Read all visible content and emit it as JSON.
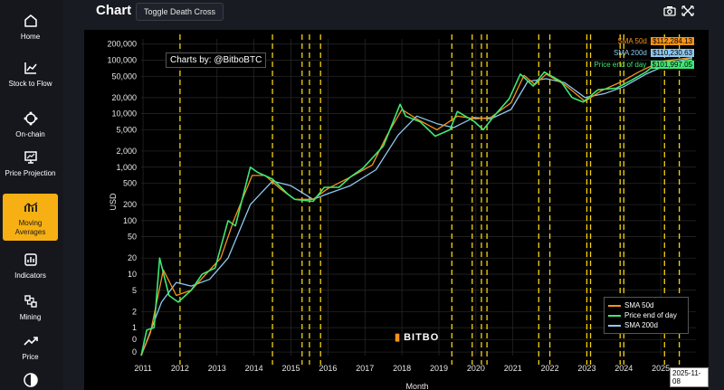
{
  "sidebar": {
    "items": [
      {
        "label": "Home",
        "icon": "home-icon"
      },
      {
        "label": "Stock to Flow",
        "icon": "stock-to-flow-icon"
      },
      {
        "label": "On-chain",
        "icon": "on-chain-icon"
      },
      {
        "label": "Price Projection",
        "icon": "price-projection-icon"
      },
      {
        "label": "Moving Averages",
        "icon": "moving-averages-icon",
        "active": true
      },
      {
        "label": "Indicators",
        "icon": "indicators-icon"
      },
      {
        "label": "Mining",
        "icon": "mining-icon"
      },
      {
        "label": "Price",
        "icon": "price-icon"
      },
      {
        "label": "",
        "icon": "theme-toggle-icon"
      }
    ]
  },
  "header": {
    "title": "Chart",
    "toggle_label": "Toggle Death Cross",
    "icons": [
      "camera-icon",
      "fullscreen-icon"
    ]
  },
  "chart": {
    "credit": "Charts by: @BitboBTC",
    "logo_text": "BITBO",
    "date_label": "2025-11-08",
    "annotations": [
      {
        "name": "SMA 50d",
        "value": "$112,284.13",
        "color": "#f7931a"
      },
      {
        "name": "SMA 200d",
        "value": "$110,230.63",
        "color": "#8ec9f0"
      },
      {
        "name": "Price end of day",
        "value": "$101,997.05",
        "color": "#3ee873"
      }
    ]
  },
  "chart_data": {
    "type": "line",
    "xlabel": "Month",
    "ylabel": "USD",
    "yscale": "log",
    "x_ticks": [
      "2011",
      "2012",
      "2013",
      "2014",
      "2015",
      "2016",
      "2017",
      "2018",
      "2019",
      "2020",
      "2021",
      "2022",
      "2023",
      "2024",
      "2025"
    ],
    "y_ticks": [
      "0",
      "0",
      "1",
      "2",
      "5",
      "10",
      "20",
      "50",
      "100",
      "200",
      "500",
      "1,000",
      "2,000",
      "5,000",
      "10,000",
      "20,000",
      "50,000",
      "100,000",
      "200,000"
    ],
    "legend": [
      "SMA 50d",
      "Price end of day",
      "SMA 200d"
    ],
    "legend_position": "bottom-right",
    "grid": true,
    "colors": {
      "sma50": "#f7931a",
      "price": "#3ee873",
      "sma200": "#8ec9f0",
      "cross": "#f5d20b"
    },
    "series": [
      {
        "name": "Price end of day",
        "x": [
          2010.95,
          2011.1,
          2011.3,
          2011.45,
          2011.7,
          2011.95,
          2012.3,
          2012.6,
          2012.95,
          2013.3,
          2013.5,
          2013.9,
          2014.1,
          2014.5,
          2014.9,
          2015.1,
          2015.6,
          2015.9,
          2016.3,
          2016.6,
          2016.95,
          2017.5,
          2017.95,
          2018.1,
          2018.5,
          2018.9,
          2019.3,
          2019.5,
          2019.95,
          2020.2,
          2020.5,
          2020.9,
          2021.2,
          2021.55,
          2021.85,
          2022.3,
          2022.6,
          2022.9,
          2023.3,
          2023.8,
          2024.2,
          2024.6,
          2024.95,
          2025.3,
          2025.85
        ],
        "values": [
          0.3,
          0.9,
          1.0,
          20,
          4,
          3,
          5,
          10,
          13,
          100,
          80,
          1000,
          800,
          600,
          320,
          250,
          230,
          420,
          420,
          650,
          960,
          2500,
          15000,
          9000,
          7000,
          3800,
          5000,
          11000,
          7200,
          5000,
          9200,
          19000,
          55000,
          33000,
          60000,
          40000,
          20000,
          16500,
          28000,
          30000,
          42000,
          60000,
          95000,
          85000,
          101997
        ]
      },
      {
        "name": "SMA 50d",
        "x": [
          2010.95,
          2011.2,
          2011.55,
          2011.9,
          2012.3,
          2012.7,
          2013.1,
          2013.45,
          2013.95,
          2014.3,
          2014.7,
          2015.1,
          2015.6,
          2016.0,
          2016.6,
          2017.2,
          2017.6,
          2018.0,
          2018.4,
          2018.95,
          2019.5,
          2020.0,
          2020.4,
          2020.95,
          2021.3,
          2021.6,
          2021.9,
          2022.4,
          2022.95,
          2023.4,
          2023.95,
          2024.4,
          2025.0,
          2025.85
        ],
        "values": [
          0.3,
          0.8,
          12,
          4,
          5,
          10,
          20,
          100,
          700,
          700,
          400,
          250,
          250,
          400,
          650,
          1100,
          4000,
          12000,
          8000,
          5000,
          9000,
          8000,
          8500,
          16000,
          52000,
          35000,
          55000,
          35000,
          17000,
          27000,
          40000,
          60000,
          95000,
          112284
        ]
      },
      {
        "name": "SMA 200d",
        "x": [
          2010.95,
          2011.5,
          2011.9,
          2012.3,
          2012.8,
          2013.3,
          2013.9,
          2014.5,
          2015.0,
          2015.6,
          2016.0,
          2016.6,
          2017.3,
          2017.9,
          2018.4,
          2018.95,
          2019.4,
          2019.95,
          2020.4,
          2020.95,
          2021.4,
          2021.9,
          2022.4,
          2022.95,
          2023.5,
          2024.0,
          2024.6,
          2025.3,
          2025.85
        ],
        "values": [
          0.3,
          3,
          7,
          6,
          8,
          20,
          200,
          550,
          450,
          250,
          320,
          450,
          900,
          4000,
          9000,
          6500,
          5500,
          8500,
          8000,
          12000,
          40000,
          45000,
          38000,
          20000,
          24000,
          32000,
          55000,
          90000,
          110231
        ]
      }
    ],
    "cross_events": [
      2012.0,
      2014.5,
      2015.3,
      2015.5,
      2015.8,
      2019.35,
      2019.9,
      2020.15,
      2020.3,
      2021.7,
      2022.0,
      2023.0,
      2023.1,
      2023.9,
      2024.0,
      2025.1,
      2025.5
    ]
  }
}
